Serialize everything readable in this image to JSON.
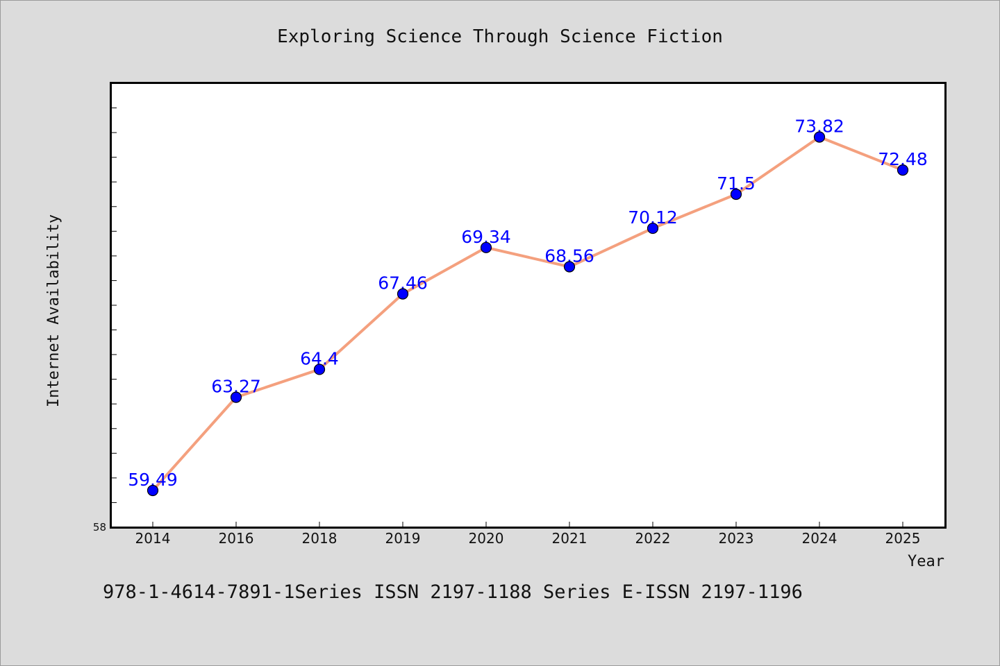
{
  "chart_data": {
    "type": "line",
    "title": "Exploring Science Through Science Fiction",
    "xlabel": "Year",
    "ylabel": "Internet Availability",
    "categories": [
      "2014",
      "2016",
      "2018",
      "2019",
      "2020",
      "2021",
      "2022",
      "2023",
      "2024",
      "2025"
    ],
    "values": [
      59.49,
      63.27,
      64.4,
      67.46,
      69.34,
      68.56,
      70.12,
      71.5,
      73.82,
      72.48
    ],
    "data_labels": [
      "59.49",
      "63.27",
      "64.4",
      "67.46",
      "69.34",
      "68.56",
      "70.12",
      "71.5",
      "73.82",
      "72.48"
    ],
    "y_tick_label": "58",
    "ylim": [
      58,
      76
    ],
    "grid": false,
    "line_color": "#f4a07e",
    "marker_color": "#0000ff",
    "label_color": "#0000ff"
  },
  "footer": {
    "text": "978-1-4614-7891-1Series ISSN 2197-1188 Series E-ISSN 2197-1196"
  }
}
